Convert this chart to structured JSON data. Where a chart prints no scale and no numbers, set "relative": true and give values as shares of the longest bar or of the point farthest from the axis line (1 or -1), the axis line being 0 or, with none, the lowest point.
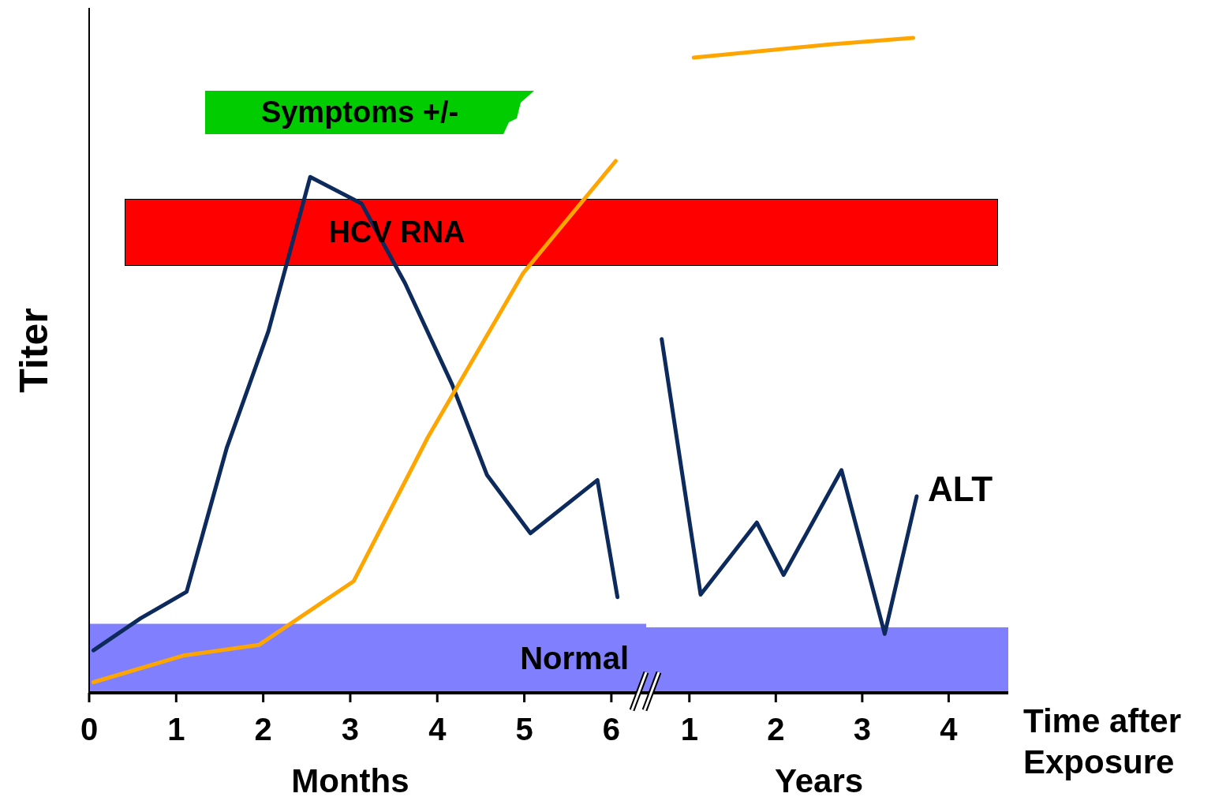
{
  "chart_data": [
    {
      "type": "line",
      "relative": true,
      "ylabel": "Titer",
      "xlim": [
        0,
        6.4
      ],
      "xticks": [
        0,
        1,
        2,
        3,
        4,
        5,
        6
      ],
      "series": [
        {
          "color": "#0d2a5c",
          "x": [
            0.05,
            0.59,
            1.12,
            1.58,
            2.06,
            2.54,
            3.13,
            3.63,
            4.17,
            4.57,
            5.07,
            5.84,
            6.07
          ],
          "values": [
            0.08,
            0.14,
            0.19,
            0.46,
            0.68,
            0.97,
            0.92,
            0.77,
            0.58,
            0.41,
            0.3,
            0.4,
            0.18
          ]
        },
        {
          "color": "#ffa500",
          "x": [
            0.05,
            1.08,
            1.95,
            3.04,
            3.89,
            4.99,
            6.05
          ],
          "values": [
            0.02,
            0.07,
            0.09,
            0.21,
            0.48,
            0.79,
            1
          ]
        }
      ],
      "bands": [
        {
          "axis": "y",
          "from": 0,
          "to": 0.13,
          "label": "Normal",
          "color": "#8080ff"
        }
      ],
      "annotations": [
        "Months",
        "HCV RNA",
        "Symptoms +/-"
      ],
      "grid": false,
      "legend": false,
      "marker": "none",
      "line_style": "solid"
    },
    {
      "type": "line",
      "relative": true,
      "xlabel": "Time after Exposure",
      "xlim": [
        0.5,
        4.69
      ],
      "xticks": [
        1,
        2,
        3,
        4
      ],
      "series": [
        {
          "name": "ALT",
          "color": "#0d2a5c",
          "x": [
            0.68,
            1.13,
            1.78,
            2.09,
            2.76,
            3.26,
            3.63
          ],
          "values": [
            0.54,
            0.15,
            0.26,
            0.18,
            0.34,
            0.09,
            0.3
          ]
        },
        {
          "color": "#ffa500",
          "x": [
            1.05,
            2.63,
            3.59
          ],
          "values": [
            0.97,
            0.99,
            1
          ]
        }
      ],
      "bands": [
        {
          "axis": "y",
          "from": 0,
          "to": 0.1,
          "color": "#8080ff"
        }
      ],
      "annotations": [
        "Years"
      ],
      "grid": false,
      "legend": false,
      "marker": "none",
      "line_style": "solid"
    }
  ]
}
